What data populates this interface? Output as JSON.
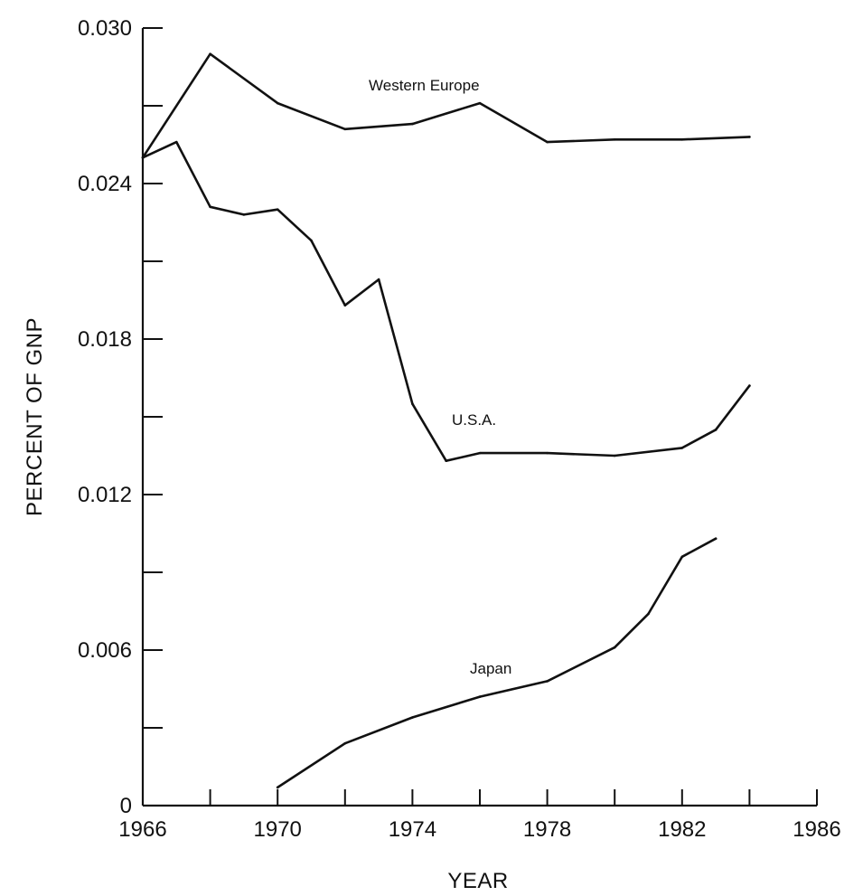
{
  "chart_data": {
    "type": "line",
    "xlabel": "YEAR",
    "ylabel": "PERCENT OF GNP",
    "xlim": [
      1966,
      1986
    ],
    "ylim": [
      0,
      0.03
    ],
    "x_major_ticks": [
      1966,
      1970,
      1974,
      1978,
      1982,
      1986
    ],
    "x_minor_ticks": [
      1968,
      1972,
      1976,
      1980,
      1984
    ],
    "y_major_ticks": [
      0,
      0.006,
      0.012,
      0.018,
      0.024,
      0.03
    ],
    "y_minor_ticks": [
      0.003,
      0.009,
      0.015,
      0.021,
      0.027
    ],
    "x_tick_labels": [
      "1966",
      "1970",
      "1974",
      "1978",
      "1982",
      "1986"
    ],
    "y_tick_labels": [
      "0",
      "0.006",
      "0.012",
      "0.018",
      "0.024",
      "0.030"
    ],
    "grid": false,
    "series": [
      {
        "name": "Western Europe",
        "x": [
          1966,
          1968,
          1970,
          1972,
          1974,
          1976,
          1978,
          1980,
          1982,
          1984
        ],
        "y": [
          0.025,
          0.029,
          0.0271,
          0.0261,
          0.0263,
          0.0271,
          0.0256,
          0.0257,
          0.0257,
          0.0258
        ]
      },
      {
        "name": "U.S.A.",
        "x": [
          1966,
          1967,
          1968,
          1969,
          1970,
          1971,
          1972,
          1973,
          1974,
          1975,
          1976,
          1978,
          1980,
          1982,
          1983,
          1984
        ],
        "y": [
          0.025,
          0.0256,
          0.0231,
          0.0228,
          0.023,
          0.0218,
          0.0193,
          0.0203,
          0.0155,
          0.0133,
          0.0136,
          0.0136,
          0.0135,
          0.0138,
          0.0145,
          0.0162
        ]
      },
      {
        "name": "Japan",
        "x": [
          1970,
          1972,
          1974,
          1976,
          1978,
          1980,
          1981,
          1982,
          1983
        ],
        "y": [
          0.0007,
          0.0024,
          0.0034,
          0.0042,
          0.0048,
          0.0061,
          0.0074,
          0.0096,
          0.0103
        ]
      }
    ]
  }
}
